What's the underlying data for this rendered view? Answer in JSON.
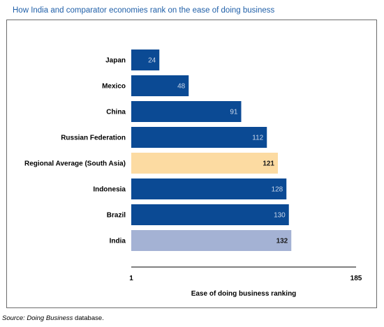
{
  "title": "How India and comparator economies rank on the ease of doing business",
  "source": {
    "prefix": "Source: ",
    "italic": "Doing Business",
    "suffix": " database."
  },
  "colors": {
    "default_bar": "#0b4a94",
    "regional_average_bar": "#fcdba2",
    "india_bar": "#a4b2d4",
    "light_value_text": "#c9d6ea",
    "dark_value_text": "#1a1a1a",
    "title_text": "#1f5fa8"
  },
  "chart_data": {
    "type": "bar",
    "orientation": "horizontal",
    "title": "How India and comparator economies rank on the ease of doing business",
    "xlabel": "Ease of doing business ranking",
    "ylabel": "",
    "xlim": [
      1,
      185
    ],
    "xticks": [
      "1",
      "185"
    ],
    "grid": false,
    "legend": "none",
    "categories": [
      "Japan",
      "Mexico",
      "China",
      "Russian Federation",
      "Regional Average (South Asia)",
      "Indonesia",
      "Brazil",
      "India"
    ],
    "values": [
      24,
      48,
      91,
      112,
      121,
      128,
      130,
      132
    ],
    "bar_styles": [
      "default",
      "default",
      "default",
      "default",
      "regional_average",
      "default",
      "default",
      "india"
    ]
  }
}
